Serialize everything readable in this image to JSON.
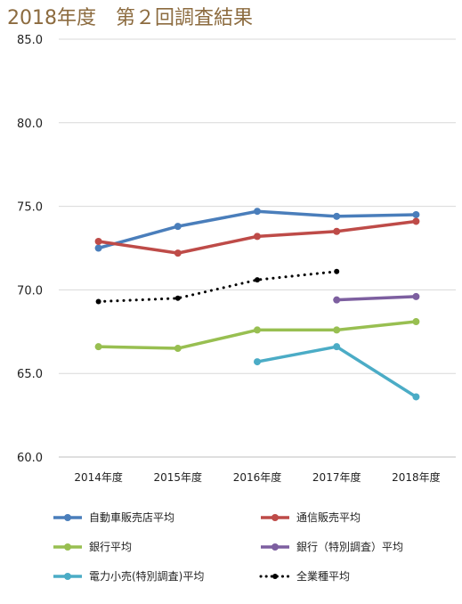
{
  "title": "2018年度　第２回調査結果",
  "chart_data": {
    "type": "line",
    "title": "2018年度　第２回調査結果",
    "categories": [
      "2014年度",
      "2015年度",
      "2016年度",
      "2017年度",
      "2018年度"
    ],
    "ylim": [
      60.0,
      85.0
    ],
    "yticks": [
      "60.0",
      "65.0",
      "70.0",
      "75.0",
      "80.0",
      "85.0"
    ],
    "grid": true,
    "legend_position": "bottom",
    "series": [
      {
        "name": "自動車販売店平均",
        "color": "#4a7ebb",
        "style": "solid",
        "values": [
          72.5,
          73.8,
          74.7,
          74.4,
          74.5
        ]
      },
      {
        "name": "通信販売平均",
        "color": "#be4b48",
        "style": "solid",
        "values": [
          72.9,
          72.2,
          73.2,
          73.5,
          74.1
        ]
      },
      {
        "name": "銀行平均",
        "color": "#98bf51",
        "style": "solid",
        "values": [
          66.6,
          66.5,
          67.6,
          67.6,
          68.1
        ]
      },
      {
        "name": "銀行（特別調査）平均",
        "color": "#7d5fa0",
        "style": "solid",
        "values": [
          null,
          null,
          null,
          69.4,
          69.6
        ]
      },
      {
        "name": "電力小売(特別調査)平均",
        "color": "#4bacc6",
        "style": "solid",
        "values": [
          null,
          null,
          65.7,
          66.6,
          63.6
        ]
      },
      {
        "name": "全業種平均",
        "color": "#000000",
        "style": "dotted",
        "values": [
          69.3,
          69.5,
          70.6,
          71.1,
          null
        ]
      }
    ]
  }
}
